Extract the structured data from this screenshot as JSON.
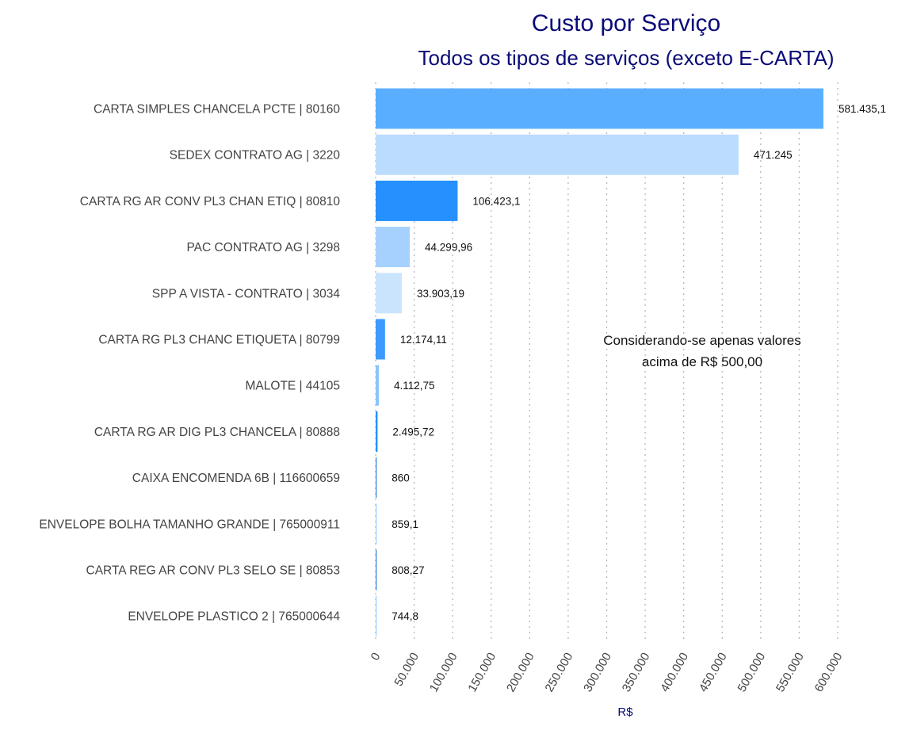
{
  "chart_data": {
    "type": "bar",
    "orientation": "horizontal",
    "title": "Custo por Serviço",
    "subtitle": "Todos os tipos de serviços (exceto E-CARTA)",
    "xlabel": "R$",
    "ylabel": "",
    "xlim": [
      0,
      600000
    ],
    "grid": true,
    "legend": "none",
    "ticks": [
      {
        "value": 0,
        "label": "0"
      },
      {
        "value": 50000,
        "label": "50.000"
      },
      {
        "value": 100000,
        "label": "100.000"
      },
      {
        "value": 150000,
        "label": "150.000"
      },
      {
        "value": 200000,
        "label": "200.000"
      },
      {
        "value": 250000,
        "label": "250.000"
      },
      {
        "value": 300000,
        "label": "300.000"
      },
      {
        "value": 350000,
        "label": "350.000"
      },
      {
        "value": 400000,
        "label": "400.000"
      },
      {
        "value": 450000,
        "label": "450.000"
      },
      {
        "value": 500000,
        "label": "500.000"
      },
      {
        "value": 550000,
        "label": "550.000"
      },
      {
        "value": 600000,
        "label": "600.000"
      }
    ],
    "bars": [
      {
        "category": "CARTA SIMPLES CHANCELA PCTE | 80160",
        "value": 581435.1,
        "label": "581.435,1",
        "color": "#5aaeff"
      },
      {
        "category": "SEDEX CONTRATO AG | 3220",
        "value": 471245,
        "label": "471.245",
        "color": "#bcdcfe"
      },
      {
        "category": "CARTA RG AR CONV PL3 CHAN ETIQ | 80810",
        "value": 106423.1,
        "label": "106.423,1",
        "color": "#2690ff"
      },
      {
        "category": "PAC CONTRATO AG | 3298",
        "value": 44299.96,
        "label": "44.299,96",
        "color": "#a6d1fe"
      },
      {
        "category": "SPP A VISTA - CONTRATO | 3034",
        "value": 33903.19,
        "label": "33.903,19",
        "color": "#cbe4fe"
      },
      {
        "category": "CARTA RG PL3 CHANC ETIQUETA | 80799",
        "value": 12174.11,
        "label": "12.174,11",
        "color": "#3d9aff"
      },
      {
        "category": "MALOTE | 44105",
        "value": 4112.75,
        "label": "4.112,75",
        "color": "#8cc4fe"
      },
      {
        "category": "CARTA RG AR DIG PL3  CHANCELA | 80888",
        "value": 2495.72,
        "label": "2.495,72",
        "color": "#2690ff"
      },
      {
        "category": "CAIXA ENCOMENDA 6B | 116600659",
        "value": 860,
        "label": "860",
        "color": "#2a7bd6"
      },
      {
        "category": "ENVELOPE BOLHA TAMANHO GRANDE | 765000911",
        "value": 859.1,
        "label": "859,1",
        "color": "#9ccbfe"
      },
      {
        "category": "CARTA REG AR CONV PL3 SELO SE | 80853",
        "value": 808.27,
        "label": "808,27",
        "color": "#2a7bd6"
      },
      {
        "category": "ENVELOPE PLASTICO 2 | 765000644",
        "value": 744.8,
        "label": "744,8",
        "color": "#9ccbfe"
      }
    ],
    "annotation": {
      "lines": [
        "Considerando-se apenas valores",
        "acima de R$ 500,00"
      ]
    }
  }
}
